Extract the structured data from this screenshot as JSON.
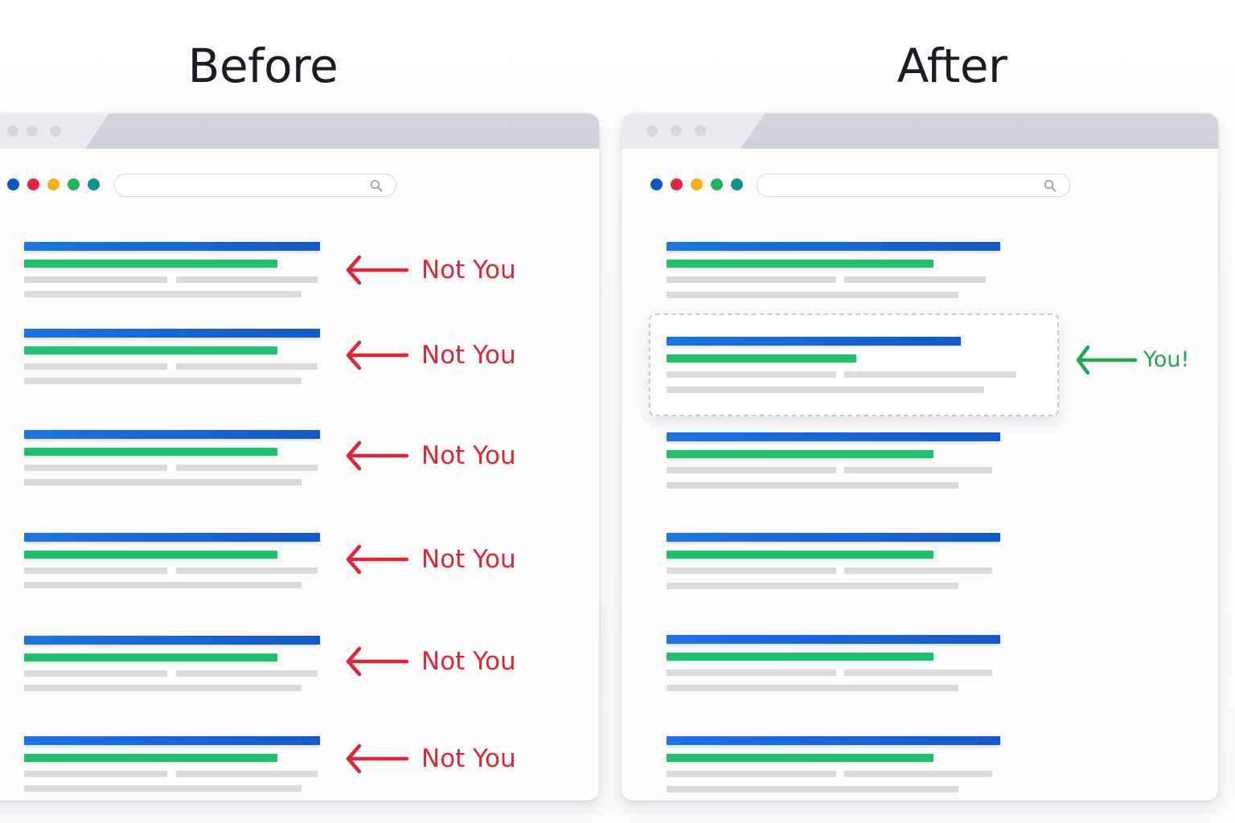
{
  "headings": {
    "before": "Before",
    "after": "After"
  },
  "colors": {
    "title_bar": "#e9ebef",
    "window_dots": [
      "#0d57c4",
      "#e4263a",
      "#f6b21a",
      "#1fb45a",
      "#12908a"
    ],
    "result_title": "#1a66d9",
    "result_url": "#22c06c",
    "result_snippet": "#d9dadd",
    "not_you": "#e02634",
    "you": "#1fa84f"
  },
  "icons": {
    "search": "magnifier-icon",
    "arrow": "arrow-left-icon"
  },
  "before": {
    "result_count": 6,
    "labels": [
      "Not You",
      "Not You",
      "Not You",
      "Not You",
      "Not You",
      "Not You"
    ]
  },
  "after": {
    "result_count": 6,
    "highlighted_result": 2,
    "label": "You!"
  }
}
